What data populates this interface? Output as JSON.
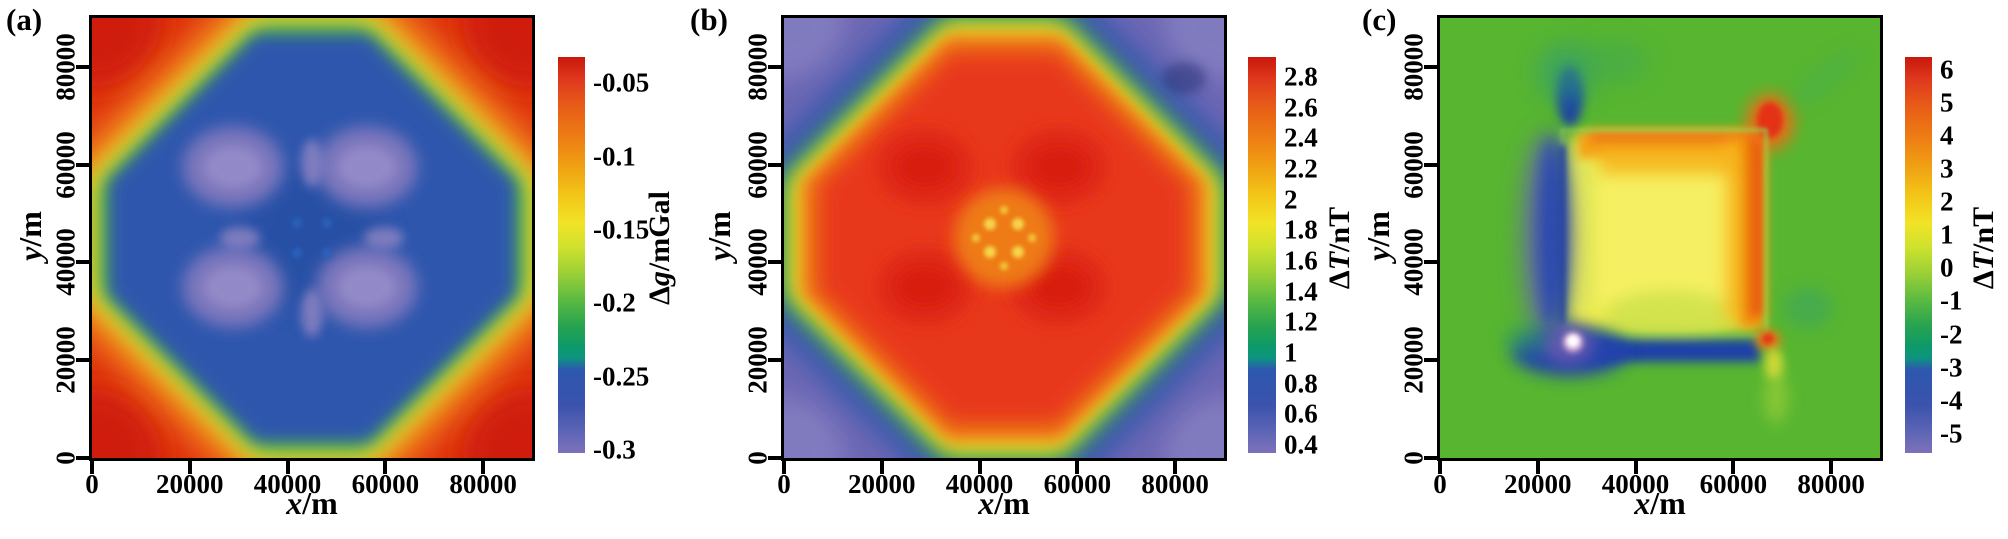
{
  "figure_type": "three-panel filled contour (heat) maps of modeled gravity and magnetic anomalies over a square prism",
  "chart_data": [
    {
      "type": "heatmap",
      "panel_label": "(a)",
      "xlabel": "x/m",
      "xlabel_var": "x",
      "xlabel_unit": "/m",
      "ylabel": "y/m",
      "ylabel_var": "y",
      "ylabel_unit": "/m",
      "x_ticks": [
        0,
        20000,
        40000,
        60000,
        80000
      ],
      "y_ticks": [
        0,
        20000,
        40000,
        60000,
        80000
      ],
      "x_range": [
        0,
        90000
      ],
      "y_range": [
        0,
        90000
      ],
      "colorbar": {
        "label": "Δg/mGal",
        "prefix": "Δ",
        "var": "g",
        "unit": "/mGal",
        "tick_labels": [
          "-0.05",
          "-0.1",
          "-0.15",
          "-0.2",
          "-0.25",
          "-0.3"
        ],
        "scale_top": -0.032,
        "scale_bottom": -0.302,
        "palette": "rainbow: red = high value (top), purple = low value (bottom)"
      },
      "field_summary": {
        "units": "mGal",
        "corners_value": -0.05,
        "edge_ring_value": -0.15,
        "central_plateau_value": -0.25,
        "four_minima_value": -0.29,
        "minima_centers_xy_m": [
          [
            29000,
            59500
          ],
          [
            56000,
            59500
          ],
          [
            29000,
            35000
          ],
          [
            56000,
            35000
          ]
        ],
        "pattern": "red high (~-0.05) along edges and corners grading through orange/yellow/green into a blue octagonal central low (~-0.25) containing four lavender minima (~-0.29) arranged symmetrically about the center"
      }
    },
    {
      "type": "heatmap",
      "panel_label": "(b)",
      "xlabel": "x/m",
      "xlabel_var": "x",
      "xlabel_unit": "/m",
      "ylabel": "y/m",
      "ylabel_var": "y",
      "ylabel_unit": "/m",
      "x_ticks": [
        0,
        20000,
        40000,
        60000,
        80000
      ],
      "y_ticks": [
        0,
        20000,
        40000,
        60000,
        80000
      ],
      "x_range": [
        0,
        90000
      ],
      "y_range": [
        0,
        90000
      ],
      "colorbar": {
        "label": "ΔT/nT",
        "prefix": "Δ",
        "var": "T",
        "unit": "/nT",
        "tick_labels": [
          "2.8",
          "2.6",
          "2.4",
          "2.2",
          "2",
          "1.8",
          "1.6",
          "1.4",
          "1.2",
          "1",
          "0.8",
          "0.6",
          "0.4"
        ],
        "scale_top": 2.93,
        "scale_bottom": 0.347,
        "palette": "rainbow: red = high value (top), purple = low value (bottom)"
      },
      "field_summary": {
        "units": "nT",
        "corners_value": 0.45,
        "edge_ring_value": 1.5,
        "central_plateau_value": 2.6,
        "four_maxima_value": 2.85,
        "maxima_centers_xy_m": [
          [
            29000,
            59500
          ],
          [
            56000,
            59500
          ],
          [
            29000,
            35000
          ],
          [
            56000,
            35000
          ]
        ],
        "center_speck_value": 1.9,
        "pattern": "inverse of panel (a): purple/blue lows (~0.4-0.8) in corners grading through green/yellow into a red-orange octagonal central high (~2.6-2.8) with four deeper red maxima and a cluster of small yellow dips at the very center"
      }
    },
    {
      "type": "heatmap",
      "panel_label": "(c)",
      "xlabel": "x/m",
      "xlabel_var": "x",
      "xlabel_unit": "/m",
      "ylabel": "y/m",
      "ylabel_var": "y",
      "ylabel_unit": "/m",
      "x_ticks": [
        0,
        20000,
        40000,
        60000,
        80000
      ],
      "y_ticks": [
        0,
        20000,
        40000,
        60000,
        80000
      ],
      "x_range": [
        0,
        90000
      ],
      "y_range": [
        0,
        90000
      ],
      "colorbar": {
        "label": "ΔT/nT",
        "prefix": "Δ",
        "var": "T",
        "unit": "/nT",
        "tick_labels": [
          "6",
          "5",
          "4",
          "3",
          "2",
          "1",
          "0",
          "-1",
          "-2",
          "-3",
          "-4",
          "-5"
        ],
        "scale_top": 6.39,
        "scale_bottom": -5.58,
        "palette": "rainbow: red = high value (top), purple = low value (bottom)"
      },
      "field_summary": {
        "units": "nT",
        "background_value": 0.5,
        "square_extent_m": {
          "x": [
            25000,
            67000
          ],
          "y": [
            25000,
            67000
          ]
        },
        "interior_value": 3,
        "top_edge_band_value": 4.5,
        "right_edge_band_value": 5.5,
        "max_hotspot_value": 6.3,
        "left_edge_trough_value": -4.5,
        "bottom_edge_trough_value": -4,
        "min_spot_value": -5.5,
        "pattern": "uniform green background (~0.5) with a square anomaly: yellow interior (~3), orange top band and orange-red right band (red hotspot ~6 at the top-right corner), dark-blue/purple troughs along the left and bottom edges, a white/pink extreme-negative spot near the bottom-left corner, and a thin light-green line tracing the square outline"
      }
    }
  ]
}
